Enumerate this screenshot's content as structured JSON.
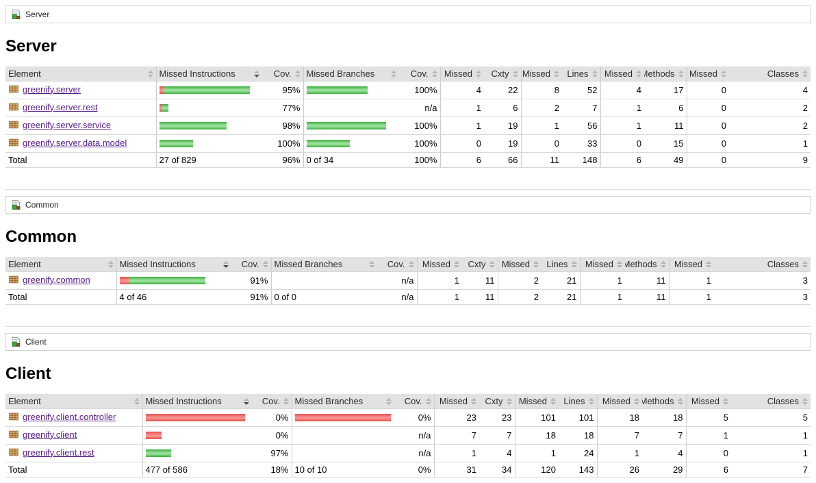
{
  "colors": {
    "covered_green": "#3fae3f",
    "missed_red": "#e14f4b",
    "link_purple": "#551A8B",
    "header_gray": "#e2e2e2"
  },
  "columns": [
    {
      "label": "Element",
      "sort": "none"
    },
    {
      "label": "Missed Instructions",
      "sort": "desc"
    },
    {
      "label": "Cov.",
      "sort": "none"
    },
    {
      "label": "Missed Branches",
      "sort": "none"
    },
    {
      "label": "Cov.",
      "sort": "none"
    },
    {
      "label": "Missed",
      "sort": "none"
    },
    {
      "label": "Cxty",
      "sort": "none"
    },
    {
      "label": "Missed",
      "sort": "none"
    },
    {
      "label": "Lines",
      "sort": "none"
    },
    {
      "label": "Missed",
      "sort": "none"
    },
    {
      "label": "Methods",
      "sort": "none"
    },
    {
      "label": "Missed",
      "sort": "none"
    },
    {
      "label": "Classes",
      "sort": "none"
    }
  ],
  "sections": [
    {
      "id": "server",
      "breadcrumb": {
        "icon": "group-icon",
        "label": "Server"
      },
      "heading": "Server",
      "rows": [
        {
          "name": "greenify.server",
          "instr_bar": {
            "red": 5,
            "green": 127
          },
          "instr_cov": "95%",
          "branch_bar": {
            "red": 0,
            "green": 89
          },
          "branch_cov": "100%",
          "numbers": [
            "4",
            "22",
            "8",
            "52",
            "4",
            "17",
            "0",
            "4"
          ]
        },
        {
          "name": "greenify.server.rest",
          "instr_bar": {
            "red": 4,
            "green": 9
          },
          "instr_cov": "77%",
          "branch_bar": null,
          "branch_cov": "n/a",
          "numbers": [
            "1",
            "6",
            "2",
            "7",
            "1",
            "6",
            "0",
            "2"
          ]
        },
        {
          "name": "greenify.server.service",
          "instr_bar": {
            "red": 0,
            "green": 98
          },
          "instr_cov": "98%",
          "branch_bar": {
            "red": 0,
            "green": 116
          },
          "branch_cov": "100%",
          "numbers": [
            "1",
            "19",
            "1",
            "56",
            "1",
            "11",
            "0",
            "2"
          ]
        },
        {
          "name": "greenify.server.data.model",
          "instr_bar": {
            "red": 0,
            "green": 49
          },
          "instr_cov": "100%",
          "branch_bar": {
            "red": 0,
            "green": 63
          },
          "branch_cov": "100%",
          "numbers": [
            "0",
            "19",
            "0",
            "33",
            "0",
            "15",
            "0",
            "1"
          ]
        }
      ],
      "total": {
        "label": "Total",
        "instr": "27 of 829",
        "instr_cov": "96%",
        "branch": "0 of 34",
        "branch_cov": "100%",
        "numbers": [
          "6",
          "66",
          "11",
          "148",
          "6",
          "49",
          "0",
          "9"
        ]
      }
    },
    {
      "id": "common",
      "breadcrumb": {
        "icon": "group-icon",
        "label": "Common"
      },
      "heading": "Common",
      "rows": [
        {
          "name": "greenify.common",
          "instr_bar": {
            "red": 13,
            "green": 112
          },
          "instr_cov": "91%",
          "branch_bar": null,
          "branch_cov": "n/a",
          "numbers": [
            "1",
            "11",
            "2",
            "21",
            "1",
            "11",
            "1",
            "3"
          ]
        }
      ],
      "total": {
        "label": "Total",
        "instr": "4 of 46",
        "instr_cov": "91%",
        "branch": "0 of 0",
        "branch_cov": "n/a",
        "numbers": [
          "1",
          "11",
          "2",
          "21",
          "1",
          "11",
          "1",
          "3"
        ]
      }
    },
    {
      "id": "client",
      "breadcrumb": {
        "icon": "group-icon",
        "label": "Client"
      },
      "heading": "Client",
      "rows": [
        {
          "name": "greenify.client.controller",
          "instr_bar": {
            "red": 145,
            "green": 0
          },
          "instr_cov": "0%",
          "branch_bar": {
            "red": 140,
            "green": 0
          },
          "branch_cov": "0%",
          "numbers": [
            "23",
            "23",
            "101",
            "101",
            "18",
            "18",
            "5",
            "5"
          ]
        },
        {
          "name": "greenify.client",
          "instr_bar": {
            "red": 23,
            "green": 0
          },
          "instr_cov": "0%",
          "branch_bar": null,
          "branch_cov": "n/a",
          "numbers": [
            "7",
            "7",
            "18",
            "18",
            "7",
            "7",
            "1",
            "1"
          ]
        },
        {
          "name": "greenify.client.rest",
          "instr_bar": {
            "red": 0,
            "green": 37
          },
          "instr_cov": "97%",
          "branch_bar": null,
          "branch_cov": "n/a",
          "numbers": [
            "1",
            "4",
            "1",
            "24",
            "1",
            "4",
            "0",
            "1"
          ]
        }
      ],
      "total": {
        "label": "Total",
        "instr": "477 of 586",
        "instr_cov": "18%",
        "branch": "10 of 10",
        "branch_cov": "0%",
        "numbers": [
          "31",
          "34",
          "120",
          "143",
          "26",
          "29",
          "6",
          "7"
        ]
      }
    }
  ]
}
